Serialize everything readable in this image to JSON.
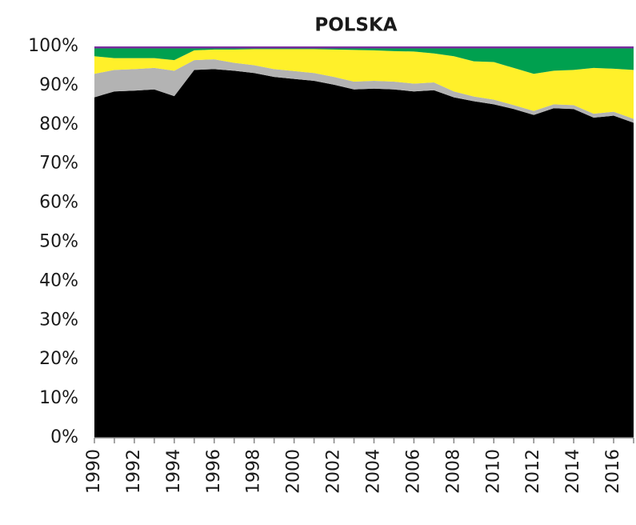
{
  "chart_data": {
    "type": "stacked_area",
    "title": "POLSKA",
    "categories": [
      "1990",
      null,
      "1992",
      null,
      "1994",
      null,
      "1996",
      null,
      "1998",
      null,
      "2000",
      null,
      "2002",
      null,
      "2004",
      null,
      "2006",
      null,
      "2008",
      null,
      "2010",
      null,
      "2012",
      null,
      "2014",
      null,
      "2016",
      null
    ],
    "series": [
      {
        "color": "#000000",
        "values": [
          87,
          88.5,
          88.7,
          89,
          87.3,
          94,
          94.2,
          93.8,
          93.2,
          92.2,
          91.7,
          91.2,
          90.2,
          89,
          89.2,
          89,
          88.5,
          88.8,
          87,
          86,
          85.2,
          84,
          82.5,
          84.2,
          84,
          81.8,
          82.3,
          80.5
        ]
      },
      {
        "color": "#b3b3b3",
        "values": [
          6,
          5.5,
          5.5,
          5.5,
          6.5,
          2.5,
          2.5,
          2,
          2,
          2,
          2,
          2,
          2,
          2,
          2,
          2,
          2,
          2,
          1.5,
          1.2,
          1.2,
          1,
          1,
          1,
          1,
          1,
          1,
          1
        ]
      },
      {
        "color": "#fff02a",
        "values": [
          4.5,
          3,
          2.8,
          2.5,
          2.7,
          2.5,
          2.5,
          3.4,
          4.1,
          5.1,
          5.6,
          6.1,
          7,
          8.1,
          7.8,
          7.8,
          8.2,
          7.4,
          9,
          9,
          9.6,
          9.5,
          9.5,
          8.6,
          9,
          11.7,
          11,
          12.5
        ]
      },
      {
        "color": "#00a04f",
        "values": [
          2,
          2.5,
          2.5,
          2.5,
          3,
          0.5,
          0.3,
          0.3,
          0.2,
          0.2,
          0.2,
          0.2,
          0.3,
          0.4,
          0.5,
          0.7,
          0.8,
          1.3,
          2,
          3.3,
          3.5,
          5,
          6.5,
          5.7,
          5.5,
          5,
          5.2,
          5.5
        ]
      },
      {
        "color": "#7a2f9e",
        "values": [
          0.5,
          0.5,
          0.5,
          0.5,
          0.5,
          0.5,
          0.5,
          0.5,
          0.5,
          0.5,
          0.5,
          0.5,
          0.5,
          0.5,
          0.5,
          0.5,
          0.5,
          0.5,
          0.5,
          0.5,
          0.5,
          0.5,
          0.5,
          0.5,
          0.5,
          0.5,
          0.5,
          0.5
        ]
      }
    ],
    "ylim": [
      0,
      100
    ],
    "yticks": [
      {
        "value": 0,
        "label": "0%"
      },
      {
        "value": 10,
        "label": "10%"
      },
      {
        "value": 20,
        "label": "20%"
      },
      {
        "value": 30,
        "label": "30%"
      },
      {
        "value": 40,
        "label": "40%"
      },
      {
        "value": 50,
        "label": "50%"
      },
      {
        "value": 60,
        "label": "60%"
      },
      {
        "value": 70,
        "label": "70%"
      },
      {
        "value": 80,
        "label": "80%"
      },
      {
        "value": 90,
        "label": "90%"
      },
      {
        "value": 100,
        "label": "100%"
      }
    ]
  }
}
